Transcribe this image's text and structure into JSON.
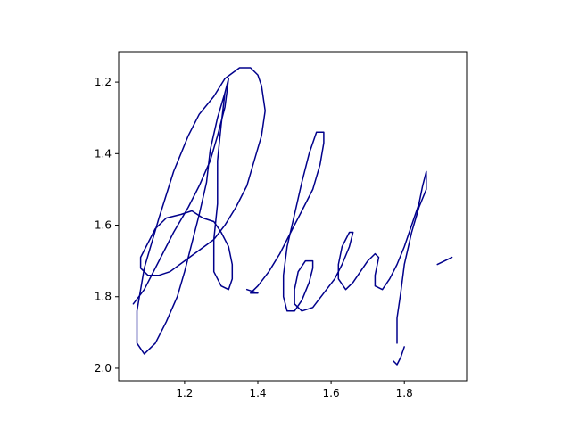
{
  "chart_data": {
    "type": "line",
    "title": "",
    "xlabel": "",
    "ylabel": "",
    "xlim": [
      1.02,
      1.97
    ],
    "ylim": [
      2.035,
      1.115
    ],
    "y_inverted": true,
    "grid": false,
    "legend": "none",
    "xticks": [
      1.2,
      1.4,
      1.6,
      1.8
    ],
    "yticks": [
      1.2,
      1.4,
      1.6,
      1.8,
      2.0
    ],
    "xtick_labels": [
      "1.2",
      "1.4",
      "1.6",
      "1.8"
    ],
    "ytick_labels": [
      "1.2",
      "1.4",
      "1.6",
      "1.8",
      "2.0"
    ],
    "series": [
      {
        "color": "#00008b",
        "strokes": [
          [
            [
              1.06,
              1.82
            ],
            [
              1.09,
              1.78
            ],
            [
              1.13,
              1.7
            ],
            [
              1.17,
              1.62
            ],
            [
              1.21,
              1.55
            ],
            [
              1.24,
              1.49
            ],
            [
              1.27,
              1.42
            ],
            [
              1.29,
              1.35
            ],
            [
              1.31,
              1.27
            ],
            [
              1.32,
              1.19
            ],
            [
              1.31,
              1.23
            ],
            [
              1.29,
              1.3
            ],
            [
              1.27,
              1.39
            ],
            [
              1.26,
              1.48
            ],
            [
              1.24,
              1.57
            ],
            [
              1.22,
              1.65
            ],
            [
              1.2,
              1.73
            ],
            [
              1.18,
              1.8
            ],
            [
              1.15,
              1.87
            ],
            [
              1.12,
              1.93
            ],
            [
              1.09,
              1.96
            ],
            [
              1.07,
              1.93
            ],
            [
              1.07,
              1.84
            ],
            [
              1.09,
              1.72
            ],
            [
              1.13,
              1.58
            ],
            [
              1.17,
              1.45
            ],
            [
              1.21,
              1.35
            ],
            [
              1.24,
              1.29
            ],
            [
              1.28,
              1.24
            ],
            [
              1.31,
              1.19
            ],
            [
              1.35,
              1.16
            ],
            [
              1.38,
              1.16
            ],
            [
              1.4,
              1.18
            ],
            [
              1.41,
              1.21
            ],
            [
              1.42,
              1.28
            ],
            [
              1.41,
              1.35
            ],
            [
              1.39,
              1.42
            ],
            [
              1.37,
              1.49
            ],
            [
              1.34,
              1.55
            ],
            [
              1.31,
              1.6
            ],
            [
              1.28,
              1.64
            ],
            [
              1.24,
              1.67
            ],
            [
              1.2,
              1.7
            ],
            [
              1.16,
              1.73
            ],
            [
              1.13,
              1.74
            ],
            [
              1.1,
              1.74
            ],
            [
              1.08,
              1.72
            ],
            [
              1.08,
              1.69
            ],
            [
              1.1,
              1.65
            ],
            [
              1.12,
              1.61
            ],
            [
              1.15,
              1.58
            ],
            [
              1.19,
              1.57
            ],
            [
              1.22,
              1.56
            ],
            [
              1.25,
              1.58
            ],
            [
              1.28,
              1.59
            ],
            [
              1.3,
              1.62
            ],
            [
              1.32,
              1.66
            ],
            [
              1.33,
              1.71
            ],
            [
              1.33,
              1.75
            ],
            [
              1.32,
              1.78
            ],
            [
              1.3,
              1.77
            ],
            [
              1.28,
              1.73
            ],
            [
              1.28,
              1.64
            ],
            [
              1.29,
              1.54
            ],
            [
              1.29,
              1.42
            ],
            [
              1.3,
              1.32
            ],
            [
              1.31,
              1.23
            ],
            [
              1.32,
              1.19
            ]
          ],
          [
            [
              1.37,
              1.78
            ],
            [
              1.4,
              1.79
            ],
            [
              1.38,
              1.79
            ],
            [
              1.4,
              1.77
            ],
            [
              1.43,
              1.73
            ],
            [
              1.46,
              1.68
            ],
            [
              1.49,
              1.62
            ],
            [
              1.52,
              1.56
            ],
            [
              1.55,
              1.5
            ],
            [
              1.57,
              1.43
            ],
            [
              1.58,
              1.37
            ],
            [
              1.58,
              1.34
            ],
            [
              1.56,
              1.34
            ],
            [
              1.54,
              1.4
            ],
            [
              1.52,
              1.48
            ],
            [
              1.5,
              1.57
            ],
            [
              1.48,
              1.66
            ],
            [
              1.47,
              1.74
            ],
            [
              1.47,
              1.8
            ],
            [
              1.48,
              1.84
            ],
            [
              1.5,
              1.84
            ],
            [
              1.52,
              1.81
            ],
            [
              1.54,
              1.76
            ],
            [
              1.55,
              1.72
            ],
            [
              1.55,
              1.7
            ],
            [
              1.53,
              1.7
            ],
            [
              1.51,
              1.73
            ],
            [
              1.5,
              1.78
            ],
            [
              1.5,
              1.82
            ],
            [
              1.52,
              1.84
            ],
            [
              1.55,
              1.83
            ],
            [
              1.58,
              1.79
            ],
            [
              1.61,
              1.75
            ],
            [
              1.63,
              1.71
            ],
            [
              1.65,
              1.66
            ],
            [
              1.66,
              1.62
            ],
            [
              1.65,
              1.62
            ],
            [
              1.63,
              1.66
            ],
            [
              1.62,
              1.71
            ],
            [
              1.62,
              1.75
            ],
            [
              1.64,
              1.78
            ],
            [
              1.66,
              1.76
            ],
            [
              1.68,
              1.73
            ],
            [
              1.7,
              1.7
            ],
            [
              1.72,
              1.68
            ],
            [
              1.73,
              1.69
            ],
            [
              1.72,
              1.74
            ],
            [
              1.72,
              1.77
            ],
            [
              1.74,
              1.78
            ],
            [
              1.76,
              1.75
            ],
            [
              1.78,
              1.71
            ],
            [
              1.8,
              1.66
            ],
            [
              1.82,
              1.6
            ],
            [
              1.84,
              1.54
            ],
            [
              1.85,
              1.49
            ],
            [
              1.86,
              1.45
            ],
            [
              1.86,
              1.5
            ],
            [
              1.84,
              1.55
            ],
            [
              1.82,
              1.62
            ],
            [
              1.8,
              1.71
            ],
            [
              1.79,
              1.79
            ],
            [
              1.78,
              1.86
            ],
            [
              1.78,
              1.93
            ]
          ],
          [
            [
              1.77,
              1.98
            ],
            [
              1.78,
              1.99
            ],
            [
              1.79,
              1.97
            ],
            [
              1.8,
              1.94
            ]
          ],
          [
            [
              1.89,
              1.71
            ],
            [
              1.91,
              1.7
            ],
            [
              1.93,
              1.69
            ]
          ]
        ]
      }
    ]
  }
}
